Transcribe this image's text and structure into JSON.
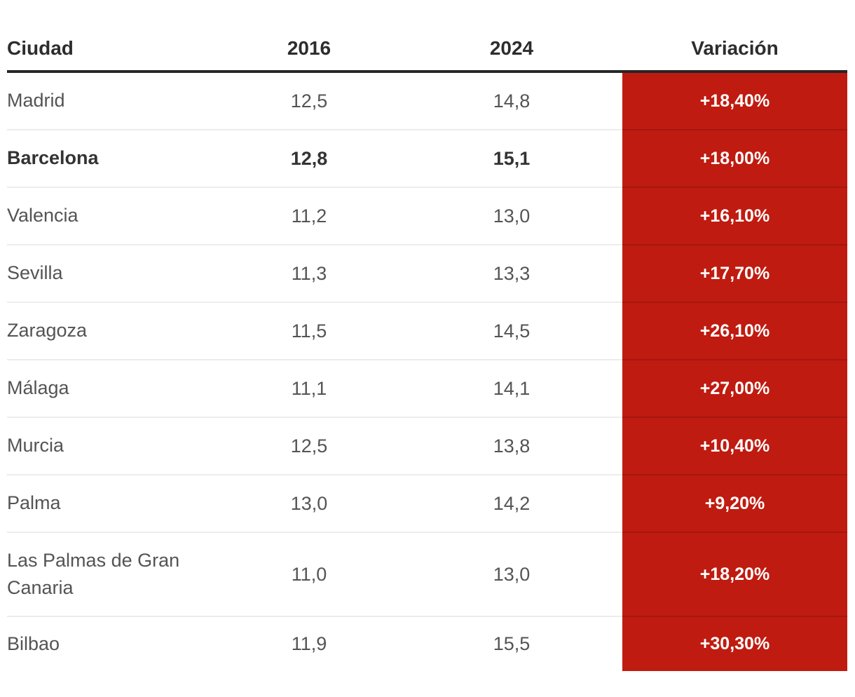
{
  "chart_data": {
    "type": "table",
    "title": "",
    "columns": [
      "Ciudad",
      "2016",
      "2024",
      "Variación"
    ],
    "rows": [
      [
        "Madrid",
        "12,5",
        "14,8",
        "+18,40%"
      ],
      [
        "Barcelona",
        "12,8",
        "15,1",
        "+18,00%"
      ],
      [
        "Valencia",
        "11,2",
        "13,0",
        "+16,10%"
      ],
      [
        "Sevilla",
        "11,3",
        "13,3",
        "+17,70%"
      ],
      [
        "Zaragoza",
        "11,5",
        "14,5",
        "+26,10%"
      ],
      [
        "Málaga",
        "11,1",
        "14,1",
        "+27,00%"
      ],
      [
        "Murcia",
        "12,5",
        "13,8",
        "+10,40%"
      ],
      [
        "Palma",
        "13,0",
        "14,2",
        "+9,20%"
      ],
      [
        "Las Palmas de Gran Canaria",
        "11,0",
        "13,0",
        "+18,20%"
      ],
      [
        "Bilbao",
        "11,9",
        "15,5",
        "+30,30%"
      ]
    ],
    "highlighted_row": "Barcelona",
    "layout_hints": {
      "variation_column_style": "white bold text on red background",
      "header_rule": "thick dark line under header",
      "row_separators": "thin light gray lines"
    }
  },
  "table": {
    "columns": [
      {
        "label": "Ciudad"
      },
      {
        "label": "2016"
      },
      {
        "label": "2024"
      },
      {
        "label": "Variación"
      }
    ],
    "rows": [
      {
        "city": "Madrid",
        "y2016": "12,5",
        "y2024": "14,8",
        "variation": "+18,40%",
        "highlight": false,
        "tall": false,
        "last": false
      },
      {
        "city": "Barcelona",
        "y2016": "12,8",
        "y2024": "15,1",
        "variation": "+18,00%",
        "highlight": true,
        "tall": false,
        "last": false
      },
      {
        "city": "Valencia",
        "y2016": "11,2",
        "y2024": "13,0",
        "variation": "+16,10%",
        "highlight": false,
        "tall": false,
        "last": false
      },
      {
        "city": "Sevilla",
        "y2016": "11,3",
        "y2024": "13,3",
        "variation": "+17,70%",
        "highlight": false,
        "tall": false,
        "last": false
      },
      {
        "city": "Zaragoza",
        "y2016": "11,5",
        "y2024": "14,5",
        "variation": "+26,10%",
        "highlight": false,
        "tall": false,
        "last": false
      },
      {
        "city": "Málaga",
        "y2016": "11,1",
        "y2024": "14,1",
        "variation": "+27,00%",
        "highlight": false,
        "tall": false,
        "last": false
      },
      {
        "city": "Murcia",
        "y2016": "12,5",
        "y2024": "13,8",
        "variation": "+10,40%",
        "highlight": false,
        "tall": false,
        "last": false
      },
      {
        "city": "Palma",
        "y2016": "13,0",
        "y2024": "14,2",
        "variation": "+9,20%",
        "highlight": false,
        "tall": false,
        "last": false
      },
      {
        "city": "Las Palmas de Gran Canaria",
        "y2016": "11,0",
        "y2024": "13,0",
        "variation": "+18,20%",
        "highlight": false,
        "tall": true,
        "last": false
      },
      {
        "city": "Bilbao",
        "y2016": "11,9",
        "y2024": "15,5",
        "variation": "+30,30%",
        "highlight": false,
        "tall": false,
        "last": true
      }
    ]
  },
  "colors": {
    "accent_red": "#c01b10",
    "red_separator": "#a5170e",
    "row_separator": "#ececec",
    "header_border": "#262626",
    "header_text": "#2d2d2d",
    "body_text": "#545454",
    "highlight_text": "#333333",
    "variation_text": "#ffffff"
  }
}
